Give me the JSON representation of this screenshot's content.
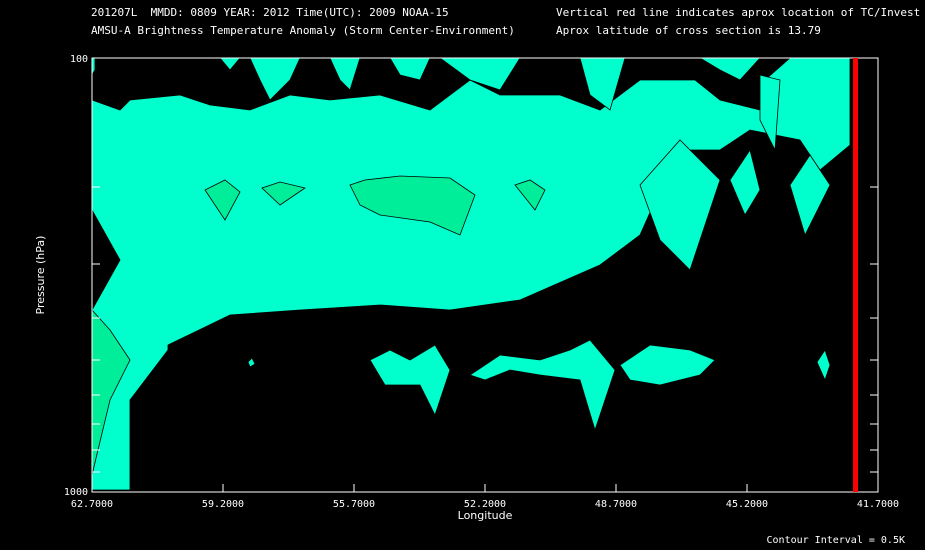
{
  "header": {
    "line1_left": "201207L  MMDD: 0809 YEAR: 2012 Time(UTC): 2009 NOAA-15",
    "line2_left": "AMSU-A Brightness Temperature Anomaly (Storm Center-Environment)",
    "line1_right": "Vertical red line indicates aprox location of TC/Invest",
    "line2_right": "Aprox latitude of cross section is 13.79"
  },
  "footer": {
    "contour_interval": "Contour Interval = 0.5K"
  },
  "colors": {
    "background": "#000000",
    "level1": "#00ffcc",
    "level2": "#00ee99",
    "contour": "#000000",
    "tc_line": "#ff0000",
    "axis": "#ffffff"
  },
  "chart_data": {
    "type": "contour",
    "xlabel": "Longitude",
    "ylabel": "Pressure (hPa)",
    "xlim": [
      62.7,
      41.7
    ],
    "ylim": [
      1000,
      100
    ],
    "yscale": "log",
    "x_tick_labels": [
      "62.7000",
      "59.2000",
      "55.7000",
      "52.2000",
      "48.7000",
      "45.2000",
      "41.7000"
    ],
    "y_tick_labels": [
      "100",
      "1000"
    ],
    "tc_longitude": 42.3,
    "contour_levels_K": [
      0.5,
      1.0
    ]
  }
}
